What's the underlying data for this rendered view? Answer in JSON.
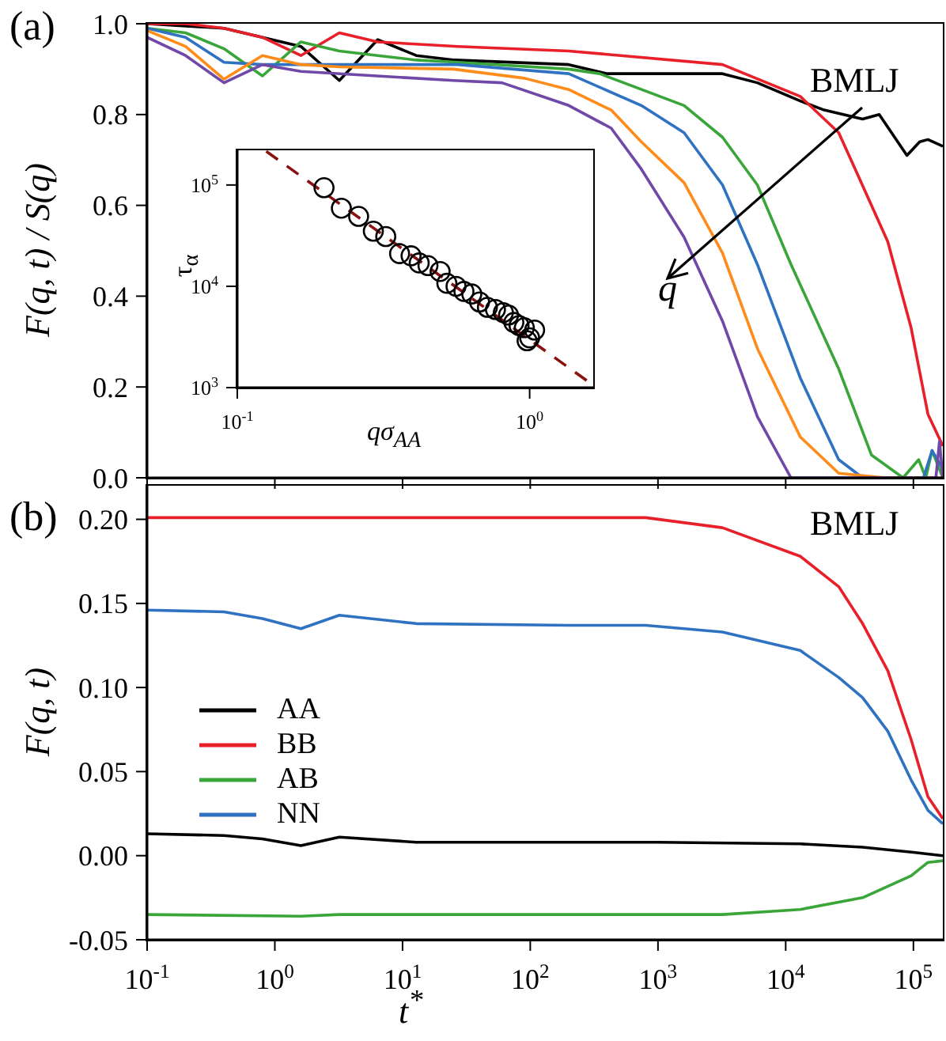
{
  "chart_data": [
    {
      "type": "line",
      "ylabel": "F(q, t) / S(q)",
      "annotations": [
        "(a)",
        "BMLJ",
        "q"
      ],
      "log": "x",
      "tick_labels": "y",
      "xlim": [
        0.1,
        170000
      ],
      "xticks": [
        {
          "value": 0.1,
          "label": null
        },
        {
          "value": 1,
          "label": null
        },
        {
          "value": 10,
          "label": null
        },
        {
          "value": 100,
          "label": null
        },
        {
          "value": 1000,
          "label": null
        },
        {
          "value": 10000,
          "label": null
        },
        {
          "value": 100000,
          "label": null
        }
      ],
      "ylim": [
        0,
        1
      ],
      "yticks": [
        {
          "value": 0,
          "label": "0.0"
        },
        0.2,
        0.4,
        0.6,
        0.8,
        {
          "value": 1,
          "label": "1.0"
        }
      ],
      "series": [
        {
          "color": "#000000",
          "x": [
            0.1,
            0.4,
            1.6,
            3.2,
            6.4,
            12.8,
            25.6,
            200,
            400,
            3200,
            6000,
            13000,
            20000,
            40000,
            54000,
            89000,
            112000,
            130000,
            170000
          ],
          "values": [
            1.0,
            0.99,
            0.95,
            0.875,
            0.965,
            0.93,
            0.92,
            0.91,
            0.89,
            0.89,
            0.87,
            0.83,
            0.81,
            0.79,
            0.8,
            0.71,
            0.74,
            0.745,
            0.73
          ]
        },
        {
          "color": "#e8202a",
          "x": [
            0.1,
            0.2,
            0.4,
            0.8,
            1.6,
            3.2,
            6.4,
            27,
            200,
            3200,
            13000,
            26000,
            35000,
            63000,
            96000,
            130000,
            170000
          ],
          "values": [
            1.0,
            1.0,
            0.99,
            0.97,
            0.93,
            0.98,
            0.96,
            0.95,
            0.94,
            0.91,
            0.84,
            0.76,
            0.68,
            0.52,
            0.33,
            0.14,
            0.07
          ]
        },
        {
          "color": "#3aa63a",
          "x": [
            0.1,
            0.2,
            0.4,
            0.8,
            1.6,
            3.2,
            6.4,
            12.8,
            27,
            200,
            350,
            1600,
            3200,
            6000,
            11000,
            26000,
            47000,
            83000,
            110000,
            125000,
            140000,
            170000
          ],
          "values": [
            0.99,
            0.98,
            0.945,
            0.885,
            0.96,
            0.94,
            0.93,
            0.92,
            0.915,
            0.9,
            0.89,
            0.82,
            0.75,
            0.645,
            0.47,
            0.24,
            0.05,
            0.0,
            0.04,
            0.0,
            0.06,
            0.0
          ]
        },
        {
          "color": "#2f72c2",
          "x": [
            0.1,
            0.2,
            0.4,
            0.8,
            1.6,
            27,
            200,
            740,
            1600,
            3200,
            6000,
            13000,
            26000,
            40000,
            120000,
            140000,
            170000
          ],
          "values": [
            0.99,
            0.97,
            0.915,
            0.91,
            0.91,
            0.91,
            0.89,
            0.82,
            0.76,
            0.645,
            0.47,
            0.22,
            0.04,
            0.0,
            0.0,
            0.06,
            0.02
          ]
        },
        {
          "color": "#ff8c1a",
          "x": [
            0.1,
            0.2,
            0.4,
            0.8,
            1.6,
            3.2,
            25,
            90,
            200,
            430,
            740,
            1600,
            3200,
            6000,
            13000,
            26000,
            60000,
            170000
          ],
          "values": [
            0.985,
            0.95,
            0.878,
            0.93,
            0.91,
            0.905,
            0.9,
            0.88,
            0.855,
            0.81,
            0.74,
            0.65,
            0.495,
            0.285,
            0.09,
            0.01,
            0.0,
            0.0
          ]
        },
        {
          "color": "#7048a8",
          "x": [
            0.1,
            0.2,
            0.4,
            0.8,
            1.6,
            25,
            60,
            200,
            430,
            740,
            1600,
            3200,
            6000,
            11000,
            60000,
            150000,
            160000,
            170000
          ],
          "values": [
            0.97,
            0.93,
            0.87,
            0.91,
            0.895,
            0.875,
            0.87,
            0.82,
            0.77,
            0.68,
            0.53,
            0.345,
            0.135,
            0.0,
            0.0,
            0.0,
            0.08,
            0.0
          ]
        }
      ]
    },
    {
      "type": "scatter",
      "xlabel": "qσ$_{AA}$",
      "ylabel": "τ$_{α}$",
      "log": "xy",
      "xlim": [
        0.1,
        1.65
      ],
      "xticks": [
        {
          "value": 0.1,
          "label": "10$^{-1}$"
        },
        {
          "value": 1,
          "label": "10$^{0}$"
        }
      ],
      "ylim": [
        1000,
        220000
      ],
      "yticks": [
        {
          "value": 1000,
          "label": "10$^{3}$"
        },
        {
          "value": 10000,
          "label": "10$^{4}$"
        },
        {
          "value": 100000,
          "label": "10$^{5}$"
        }
      ],
      "series": [
        {
          "marker": "circle",
          "color": "#000000",
          "x": [
            0.198,
            0.227,
            0.26,
            0.292,
            0.322,
            0.359,
            0.393,
            0.419,
            0.449,
            0.494,
            0.521,
            0.56,
            0.596,
            0.634,
            0.674,
            0.717,
            0.764,
            0.813,
            0.847,
            0.883,
            0.92,
            0.959,
            1.0,
            1.04,
            0.98
          ],
          "values": [
            94000,
            59000,
            49000,
            35000,
            31000,
            21000,
            20000,
            17000,
            16000,
            14000,
            10700,
            10000,
            8900,
            8400,
            7000,
            6200,
            5900,
            5500,
            5200,
            4400,
            4100,
            3900,
            3100,
            3700,
            2900
          ]
        },
        {
          "type": "line",
          "line_style": "dashed",
          "color": "#8b1010",
          "x": [
            0.1256,
            1.64
          ],
          "values": [
            215000,
            1070
          ]
        }
      ]
    },
    {
      "type": "line",
      "xlabel": "t$^{*}$",
      "ylabel": "F(q, t)",
      "annotations": [
        "(b)",
        "BMLJ"
      ],
      "log": "x",
      "legend": "left",
      "xlim": [
        0.1,
        170000
      ],
      "xticks": [
        {
          "value": 0.1,
          "label": "10$^{-1}$"
        },
        {
          "value": 1,
          "label": "10$^{0}$"
        },
        {
          "value": 10,
          "label": "10$^{1}$"
        },
        {
          "value": 100,
          "label": "10$^{2}$"
        },
        {
          "value": 1000,
          "label": "10$^{3}$"
        },
        {
          "value": 10000,
          "label": "10$^{4}$"
        },
        {
          "value": 100000,
          "label": "10$^{5}$"
        }
      ],
      "ylim": [
        -0.05,
        0.22
      ],
      "yticks": [
        {
          "value": -0.05,
          "label": "-0.05"
        },
        {
          "value": 0,
          "label": "0.00"
        },
        {
          "value": 0.05,
          "label": "0.05"
        },
        {
          "value": 0.1,
          "label": "0.10"
        },
        {
          "value": 0.15,
          "label": "0.15"
        },
        {
          "value": 0.2,
          "label": "0.20"
        }
      ],
      "series": [
        {
          "name": "AA",
          "color": "#000000",
          "x": [
            0.1,
            0.4,
            0.8,
            1.6,
            3.2,
            12.8,
            1000,
            13000,
            40000,
            100000,
            170000
          ],
          "values": [
            0.013,
            0.012,
            0.01,
            0.006,
            0.011,
            0.008,
            0.008,
            0.007,
            0.005,
            0.002,
            0.0
          ]
        },
        {
          "name": "BB",
          "color": "#e8202a",
          "x": [
            0.1,
            1,
            800,
            3200,
            13000,
            26000,
            40000,
            63000,
            96000,
            130000,
            170000
          ],
          "values": [
            0.201,
            0.201,
            0.201,
            0.195,
            0.178,
            0.16,
            0.138,
            0.11,
            0.069,
            0.035,
            0.022
          ]
        },
        {
          "name": "AB",
          "color": "#3aa63a",
          "x": [
            0.1,
            1.6,
            3.2,
            3200,
            13000,
            40000,
            96000,
            130000,
            170000
          ],
          "values": [
            -0.035,
            -0.036,
            -0.035,
            -0.035,
            -0.032,
            -0.025,
            -0.012,
            -0.004,
            -0.003
          ]
        },
        {
          "name": "NN",
          "color": "#2f72c2",
          "x": [
            0.1,
            0.4,
            0.8,
            1.6,
            3.2,
            12.8,
            200,
            800,
            3200,
            13000,
            26000,
            40000,
            63000,
            96000,
            130000,
            170000
          ],
          "values": [
            0.146,
            0.145,
            0.141,
            0.135,
            0.143,
            0.138,
            0.137,
            0.137,
            0.133,
            0.122,
            0.106,
            0.094,
            0.074,
            0.045,
            0.027,
            0.019
          ]
        }
      ]
    }
  ]
}
